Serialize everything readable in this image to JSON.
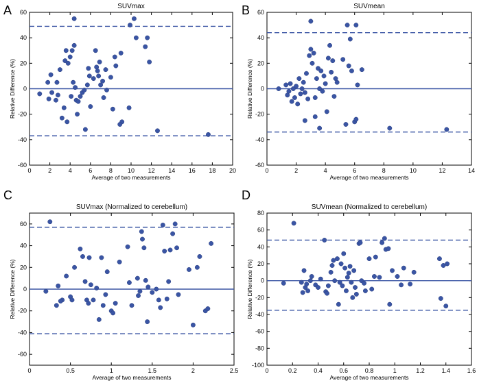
{
  "chart_data": [
    {
      "panel_letter": "A",
      "type": "scatter",
      "title": "SUVmax",
      "xlabel": "Average of two measurements",
      "ylabel": "Relative Difference (%)",
      "xlim": [
        0,
        20
      ],
      "ylim": [
        -60,
        60
      ],
      "xticks": [
        0,
        2,
        4,
        6,
        8,
        10,
        12,
        14,
        16,
        18,
        20
      ],
      "yticks": [
        -60,
        -40,
        -20,
        0,
        20,
        40,
        60
      ],
      "mean_line": 0,
      "upper_limit": 49,
      "lower_limit": -37,
      "points": [
        [
          1,
          -4
        ],
        [
          1.8,
          5
        ],
        [
          1.9,
          -8
        ],
        [
          2.1,
          11
        ],
        [
          2.2,
          -3
        ],
        [
          2.6,
          -9
        ],
        [
          2.7,
          5
        ],
        [
          2.8,
          -5
        ],
        [
          3.0,
          15
        ],
        [
          3.2,
          -23
        ],
        [
          3.4,
          -15
        ],
        [
          3.5,
          22
        ],
        [
          3.6,
          30
        ],
        [
          3.7,
          -26
        ],
        [
          3.8,
          20
        ],
        [
          4.0,
          25
        ],
        [
          4.1,
          -6
        ],
        [
          4.2,
          30
        ],
        [
          4.3,
          5
        ],
        [
          4.4,
          34
        ],
        [
          4.4,
          55
        ],
        [
          4.5,
          1
        ],
        [
          4.6,
          -9
        ],
        [
          4.7,
          -20
        ],
        [
          4.8,
          -10
        ],
        [
          5.0,
          -6
        ],
        [
          5.2,
          -3
        ],
        [
          5.4,
          -1
        ],
        [
          5.5,
          -32
        ],
        [
          5.7,
          3
        ],
        [
          5.8,
          16
        ],
        [
          5.9,
          10
        ],
        [
          6.0,
          -14
        ],
        [
          6.3,
          8
        ],
        [
          6.5,
          30
        ],
        [
          6.6,
          17
        ],
        [
          6.7,
          14
        ],
        [
          6.8,
          10
        ],
        [
          6.9,
          21
        ],
        [
          7.0,
          3
        ],
        [
          7.2,
          6
        ],
        [
          7.3,
          -7
        ],
        [
          7.5,
          15
        ],
        [
          7.6,
          -1
        ],
        [
          8.0,
          9
        ],
        [
          8.2,
          -16
        ],
        [
          8.4,
          25
        ],
        [
          8.5,
          18
        ],
        [
          9.0,
          28
        ],
        [
          9.1,
          -26
        ],
        [
          8.9,
          -28
        ],
        [
          9.8,
          -15
        ],
        [
          9.9,
          50
        ],
        [
          10.3,
          55
        ],
        [
          10.5,
          40
        ],
        [
          11.4,
          33
        ],
        [
          11.6,
          40
        ],
        [
          11.8,
          21
        ],
        [
          12.6,
          -33
        ],
        [
          17.6,
          -36
        ]
      ]
    },
    {
      "panel_letter": "B",
      "type": "scatter",
      "title": "SUVmean",
      "xlabel": "Average of two measurements",
      "ylabel": "Relative Difference (%)",
      "xlim": [
        0,
        14
      ],
      "ylim": [
        -60,
        60
      ],
      "xticks": [
        0,
        2,
        4,
        6,
        8,
        10,
        12,
        14
      ],
      "yticks": [
        -60,
        -40,
        -20,
        0,
        20,
        40,
        60
      ],
      "mean_line": 0,
      "upper_limit": 44,
      "lower_limit": -34,
      "points": [
        [
          0.8,
          0
        ],
        [
          1.3,
          3
        ],
        [
          1.4,
          -5
        ],
        [
          1.5,
          -2
        ],
        [
          1.6,
          4
        ],
        [
          1.7,
          -10
        ],
        [
          1.8,
          0
        ],
        [
          1.9,
          -7
        ],
        [
          2.0,
          2
        ],
        [
          2.1,
          -12
        ],
        [
          2.2,
          8
        ],
        [
          2.3,
          -4
        ],
        [
          2.4,
          0
        ],
        [
          2.5,
          5
        ],
        [
          2.6,
          -3
        ],
        [
          2.6,
          -25
        ],
        [
          2.7,
          12
        ],
        [
          2.8,
          -8
        ],
        [
          2.9,
          26
        ],
        [
          3.0,
          31
        ],
        [
          3.0,
          53
        ],
        [
          3.1,
          20
        ],
        [
          3.2,
          28
        ],
        [
          3.3,
          -7
        ],
        [
          3.3,
          -22
        ],
        [
          3.4,
          8
        ],
        [
          3.5,
          16
        ],
        [
          3.6,
          0
        ],
        [
          3.6,
          -31
        ],
        [
          3.7,
          14
        ],
        [
          3.8,
          -2
        ],
        [
          3.9,
          10
        ],
        [
          4.0,
          4
        ],
        [
          4.1,
          -18
        ],
        [
          4.2,
          24
        ],
        [
          4.3,
          34
        ],
        [
          4.4,
          13
        ],
        [
          4.5,
          22
        ],
        [
          4.6,
          -6
        ],
        [
          4.7,
          8
        ],
        [
          4.8,
          5
        ],
        [
          5.2,
          23
        ],
        [
          5.4,
          -28
        ],
        [
          5.5,
          50
        ],
        [
          5.6,
          18
        ],
        [
          5.7,
          39
        ],
        [
          5.8,
          14
        ],
        [
          6.0,
          -26
        ],
        [
          6.1,
          50
        ],
        [
          6.2,
          3
        ],
        [
          6.5,
          15
        ],
        [
          6.1,
          -24
        ],
        [
          8.4,
          -31
        ],
        [
          12.3,
          -32
        ]
      ]
    },
    {
      "panel_letter": "C",
      "type": "scatter",
      "title": "SUVmax (Normalized to cerebellum)",
      "xlabel": "Average of two measurements",
      "ylabel": "Relative Difference (%)",
      "xlim": [
        0,
        2.5
      ],
      "ylim": [
        -70,
        70
      ],
      "xticks": [
        0,
        0.5,
        1,
        1.5,
        2,
        2.5
      ],
      "yticks": [
        -60,
        -40,
        -20,
        0,
        20,
        40,
        60
      ],
      "ytick_labels": [
        "-60",
        "-40",
        "-20",
        "0",
        "20",
        "40",
        "60"
      ],
      "xtick_labels": [
        "0",
        "0.5",
        "1",
        "1.5",
        "2",
        "2.5"
      ],
      "mean_line": 0,
      "upper_limit": 57,
      "lower_limit": -41,
      "points": [
        [
          0.2,
          -2
        ],
        [
          0.25,
          62
        ],
        [
          0.33,
          -15
        ],
        [
          0.35,
          3
        ],
        [
          0.4,
          -10
        ],
        [
          0.45,
          12
        ],
        [
          0.5,
          -7
        ],
        [
          0.52,
          -10
        ],
        [
          0.55,
          20
        ],
        [
          0.62,
          37
        ],
        [
          0.65,
          30
        ],
        [
          0.68,
          7
        ],
        [
          0.7,
          -10
        ],
        [
          0.72,
          -13
        ],
        [
          0.73,
          29
        ],
        [
          0.75,
          4
        ],
        [
          0.78,
          -10
        ],
        [
          0.82,
          1
        ],
        [
          0.85,
          -28
        ],
        [
          0.88,
          29
        ],
        [
          0.9,
          -15
        ],
        [
          0.93,
          -5
        ],
        [
          0.95,
          16
        ],
        [
          1.0,
          -20
        ],
        [
          1.02,
          -22
        ],
        [
          1.05,
          -13
        ],
        [
          1.1,
          25
        ],
        [
          1.2,
          39
        ],
        [
          1.22,
          6
        ],
        [
          1.25,
          -15
        ],
        [
          1.32,
          10
        ],
        [
          1.35,
          -2
        ],
        [
          1.37,
          53
        ],
        [
          1.38,
          46
        ],
        [
          1.4,
          38
        ],
        [
          1.42,
          8
        ],
        [
          1.44,
          -30
        ],
        [
          1.45,
          2
        ],
        [
          1.55,
          0
        ],
        [
          1.58,
          -10
        ],
        [
          1.6,
          -17
        ],
        [
          1.63,
          59
        ],
        [
          1.65,
          35
        ],
        [
          1.68,
          -9
        ],
        [
          1.7,
          7
        ],
        [
          1.72,
          36
        ],
        [
          1.75,
          51
        ],
        [
          1.78,
          60
        ],
        [
          1.8,
          38
        ],
        [
          1.82,
          -5
        ],
        [
          1.95,
          18
        ],
        [
          2.0,
          -33
        ],
        [
          2.05,
          20
        ],
        [
          2.08,
          30
        ],
        [
          2.15,
          -20
        ],
        [
          2.18,
          -18
        ],
        [
          2.22,
          42
        ],
        [
          1.5,
          -3
        ],
        [
          0.38,
          -11
        ],
        [
          1.33,
          -6
        ]
      ]
    },
    {
      "panel_letter": "D",
      "type": "scatter",
      "title": "SUVmean (Normalized to cerebellum)",
      "xlabel": "Average of two measurements",
      "ylabel": "Relative Difference (%)",
      "xlim": [
        0,
        1.6
      ],
      "ylim": [
        -100,
        80
      ],
      "xticks": [
        0,
        0.2,
        0.4,
        0.6,
        0.8,
        1,
        1.2,
        1.4,
        1.6
      ],
      "xtick_labels": [
        "0",
        "0.2",
        "0.4",
        "0.6",
        "0.8",
        "1",
        "1.2",
        "1.4",
        "1.6"
      ],
      "yticks": [
        -100,
        -80,
        -60,
        -40,
        -20,
        0,
        20,
        40,
        60,
        80
      ],
      "mean_line": 0,
      "upper_limit": 48,
      "lower_limit": -35,
      "points": [
        [
          0.13,
          -3
        ],
        [
          0.21,
          68
        ],
        [
          0.27,
          -2
        ],
        [
          0.28,
          -14
        ],
        [
          0.29,
          12
        ],
        [
          0.3,
          -8
        ],
        [
          0.31,
          -4
        ],
        [
          0.32,
          -12
        ],
        [
          0.34,
          0
        ],
        [
          0.35,
          5
        ],
        [
          0.38,
          -5
        ],
        [
          0.4,
          -8
        ],
        [
          0.42,
          2
        ],
        [
          0.45,
          48
        ],
        [
          0.46,
          -13
        ],
        [
          0.47,
          -15
        ],
        [
          0.48,
          -6
        ],
        [
          0.5,
          10
        ],
        [
          0.51,
          18
        ],
        [
          0.52,
          24
        ],
        [
          0.53,
          0
        ],
        [
          0.55,
          26
        ],
        [
          0.56,
          -28
        ],
        [
          0.57,
          -2
        ],
        [
          0.58,
          20
        ],
        [
          0.59,
          -6
        ],
        [
          0.6,
          32
        ],
        [
          0.61,
          15
        ],
        [
          0.62,
          -12
        ],
        [
          0.63,
          4
        ],
        [
          0.64,
          9
        ],
        [
          0.65,
          17
        ],
        [
          0.66,
          -2
        ],
        [
          0.67,
          -20
        ],
        [
          0.68,
          12
        ],
        [
          0.69,
          -8
        ],
        [
          0.7,
          -16
        ],
        [
          0.72,
          44
        ],
        [
          0.73,
          45
        ],
        [
          0.74,
          0
        ],
        [
          0.76,
          -3
        ],
        [
          0.8,
          26
        ],
        [
          0.82,
          -10
        ],
        [
          0.84,
          5
        ],
        [
          0.85,
          28
        ],
        [
          0.88,
          4
        ],
        [
          0.9,
          45
        ],
        [
          0.92,
          50
        ],
        [
          0.93,
          37
        ],
        [
          0.95,
          38
        ],
        [
          0.96,
          -28
        ],
        [
          0.98,
          12
        ],
        [
          1.05,
          -5
        ],
        [
          1.07,
          15
        ],
        [
          1.12,
          -4
        ],
        [
          1.15,
          10
        ],
        [
          1.35,
          26
        ],
        [
          1.36,
          -21
        ],
        [
          1.38,
          18
        ],
        [
          1.4,
          -30
        ],
        [
          1.41,
          20
        ],
        [
          0.77,
          -12
        ],
        [
          1.02,
          5
        ]
      ]
    }
  ]
}
